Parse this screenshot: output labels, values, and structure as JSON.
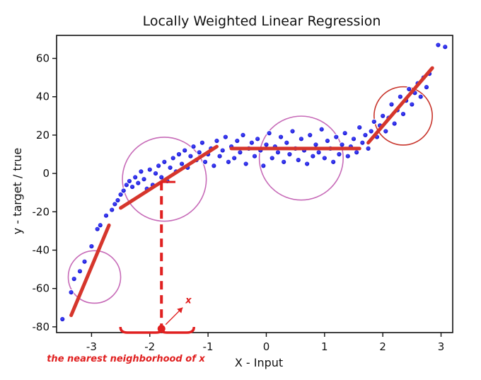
{
  "chart_data": {
    "type": "scatter",
    "title": "Locally Weighted Linear Regression",
    "xlabel": "X - Input",
    "ylabel": "y - target / true",
    "xlim": [
      -3.6,
      3.2
    ],
    "ylim": [
      -83,
      72
    ],
    "xticks": [
      -3,
      -2,
      -1,
      0,
      1,
      2,
      3
    ],
    "yticks": [
      -80,
      -60,
      -40,
      -20,
      0,
      20,
      40,
      60
    ],
    "grid": false,
    "colors": {
      "points": "#1414e6",
      "fit_lines": "#d6362c",
      "neighborhood_circles": "#c76bb8",
      "highlight_circle": "#c8352c",
      "annotation": "#e02020"
    },
    "series": [
      {
        "points": [
          [
            -3.5,
            -76
          ],
          [
            -3.35,
            -62
          ],
          [
            -3.3,
            -55
          ],
          [
            -3.2,
            -51
          ],
          [
            -3.12,
            -46
          ],
          [
            -3.0,
            -38
          ],
          [
            -2.9,
            -29
          ],
          [
            -2.85,
            -27
          ],
          [
            -2.75,
            -22
          ],
          [
            -2.65,
            -19
          ],
          [
            -2.6,
            -16
          ],
          [
            -2.55,
            -14
          ],
          [
            -2.5,
            -11
          ],
          [
            -2.45,
            -9
          ],
          [
            -2.4,
            -6
          ],
          [
            -2.35,
            -4
          ],
          [
            -2.3,
            -7
          ],
          [
            -2.25,
            -2
          ],
          [
            -2.2,
            -5
          ],
          [
            -2.15,
            1
          ],
          [
            -2.1,
            -3
          ],
          [
            -2.05,
            -8
          ],
          [
            -2.0,
            2
          ],
          [
            -1.95,
            -6
          ],
          [
            -1.9,
            0
          ],
          [
            -1.85,
            4
          ],
          [
            -1.8,
            -2
          ],
          [
            -1.75,
            6
          ],
          [
            -1.7,
            -4
          ],
          [
            -1.65,
            3
          ],
          [
            -1.6,
            8
          ],
          [
            -1.55,
            1
          ],
          [
            -1.5,
            10
          ],
          [
            -1.45,
            5
          ],
          [
            -1.4,
            12
          ],
          [
            -1.35,
            3
          ],
          [
            -1.3,
            9
          ],
          [
            -1.25,
            14
          ],
          [
            -1.2,
            7
          ],
          [
            -1.15,
            11
          ],
          [
            -1.1,
            16
          ],
          [
            -1.05,
            6
          ],
          [
            -1.0,
            10
          ],
          [
            -0.95,
            13
          ],
          [
            -0.9,
            4
          ],
          [
            -0.85,
            17
          ],
          [
            -0.8,
            9
          ],
          [
            -0.75,
            12
          ],
          [
            -0.7,
            19
          ],
          [
            -0.65,
            6
          ],
          [
            -0.6,
            14
          ],
          [
            -0.55,
            8
          ],
          [
            -0.5,
            17
          ],
          [
            -0.45,
            11
          ],
          [
            -0.4,
            20
          ],
          [
            -0.35,
            5
          ],
          [
            -0.3,
            13
          ],
          [
            -0.25,
            16
          ],
          [
            -0.2,
            9
          ],
          [
            -0.15,
            18
          ],
          [
            -0.1,
            12
          ],
          [
            -0.05,
            4
          ],
          [
            0.0,
            15
          ],
          [
            0.05,
            21
          ],
          [
            0.1,
            8
          ],
          [
            0.15,
            14
          ],
          [
            0.2,
            11
          ],
          [
            0.25,
            19
          ],
          [
            0.3,
            6
          ],
          [
            0.35,
            16
          ],
          [
            0.4,
            10
          ],
          [
            0.45,
            22
          ],
          [
            0.5,
            13
          ],
          [
            0.55,
            7
          ],
          [
            0.6,
            18
          ],
          [
            0.65,
            12
          ],
          [
            0.7,
            5
          ],
          [
            0.75,
            20
          ],
          [
            0.8,
            9
          ],
          [
            0.85,
            15
          ],
          [
            0.9,
            11
          ],
          [
            0.95,
            23
          ],
          [
            1.0,
            8
          ],
          [
            1.05,
            17
          ],
          [
            1.1,
            13
          ],
          [
            1.15,
            6
          ],
          [
            1.2,
            19
          ],
          [
            1.25,
            10
          ],
          [
            1.3,
            15
          ],
          [
            1.35,
            21
          ],
          [
            1.4,
            9
          ],
          [
            1.45,
            14
          ],
          [
            1.5,
            18
          ],
          [
            1.55,
            11
          ],
          [
            1.6,
            24
          ],
          [
            1.65,
            16
          ],
          [
            1.7,
            20
          ],
          [
            1.75,
            13
          ],
          [
            1.8,
            22
          ],
          [
            1.85,
            27
          ],
          [
            1.9,
            19
          ],
          [
            1.95,
            25
          ],
          [
            2.0,
            30
          ],
          [
            2.05,
            22
          ],
          [
            2.1,
            29
          ],
          [
            2.15,
            36
          ],
          [
            2.2,
            26
          ],
          [
            2.25,
            33
          ],
          [
            2.3,
            40
          ],
          [
            2.35,
            31
          ],
          [
            2.4,
            38
          ],
          [
            2.45,
            44
          ],
          [
            2.5,
            36
          ],
          [
            2.55,
            42
          ],
          [
            2.6,
            47
          ],
          [
            2.65,
            40
          ],
          [
            2.7,
            50
          ],
          [
            2.75,
            45
          ],
          [
            2.8,
            52
          ],
          [
            2.95,
            67
          ],
          [
            3.07,
            66
          ]
        ]
      }
    ],
    "local_fits": [
      {
        "x": [
          -3.35,
          -2.7
        ],
        "y": [
          -74,
          -27
        ]
      },
      {
        "x": [
          -2.5,
          -0.85
        ],
        "y": [
          -18,
          14
        ]
      },
      {
        "x": [
          -0.6,
          1.6
        ],
        "y": [
          13,
          13
        ]
      },
      {
        "x": [
          1.75,
          2.85
        ],
        "y": [
          16,
          55
        ]
      }
    ],
    "neighborhoods": [
      {
        "center": [
          -2.95,
          -54
        ],
        "radius_x": 0.45
      },
      {
        "center": [
          -1.75,
          -3
        ],
        "radius_x": 0.72
      },
      {
        "center": [
          0.6,
          8
        ],
        "radius_x": 0.72
      },
      {
        "center": [
          2.35,
          30
        ],
        "radius_x": 0.5
      }
    ],
    "query_point": {
      "x": -1.8,
      "y": -81
    },
    "annotations": {
      "query_label": "x",
      "neighborhood_caption": "the nearest neighborhood of x"
    }
  }
}
